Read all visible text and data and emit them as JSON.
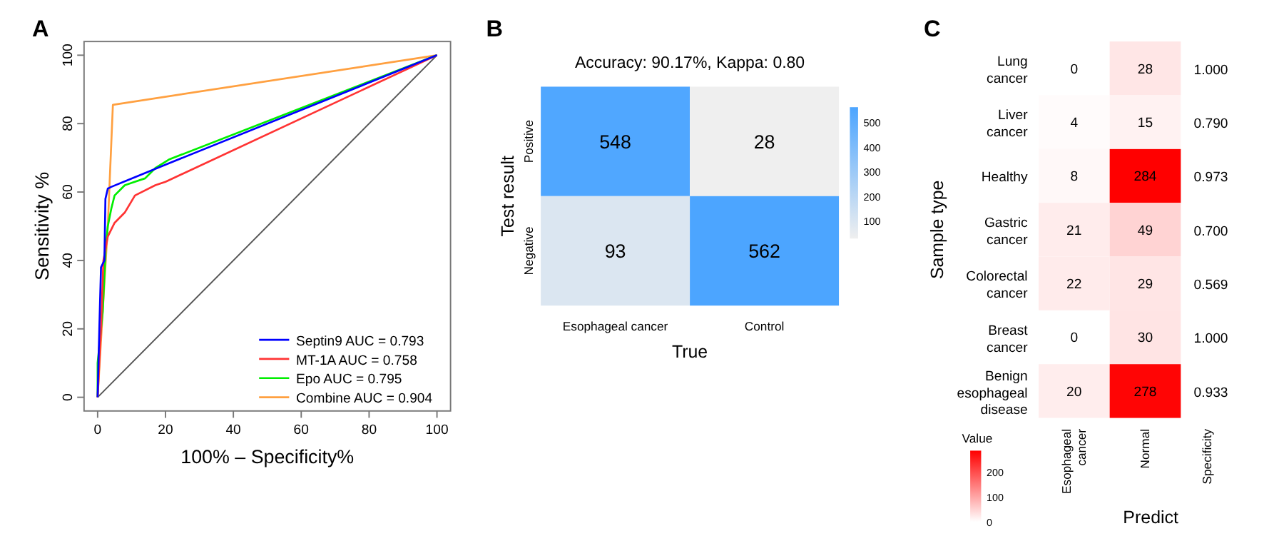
{
  "chart_data": [
    {
      "type": "line",
      "annotations": [
        "A"
      ],
      "xlabel": "100% – Specificity%",
      "ylabel": "Sensitivity %",
      "xlim": [
        -4,
        104
      ],
      "ylim": [
        -4,
        104
      ],
      "xticks": [
        0,
        20,
        40,
        60,
        80,
        100
      ],
      "yticks": [
        0,
        20,
        40,
        60,
        80,
        100
      ],
      "grid": false,
      "legend": "bottom right",
      "series": [
        {
          "name": "Septin9  AUC = 0.793",
          "color": "#0000ff",
          "x": [
            0,
            0.5,
            1,
            2,
            2.3,
            3,
            4,
            20,
            100
          ],
          "values": [
            0,
            20,
            38,
            40,
            58,
            61,
            61.5,
            68,
            100
          ]
        },
        {
          "name": "MT-1A  AUC = 0.758",
          "color": "#ff3333",
          "x": [
            0,
            1,
            1.7,
            3,
            5,
            8,
            11,
            17,
            20,
            100
          ],
          "values": [
            0,
            20,
            40,
            47,
            51,
            54,
            59,
            62,
            63,
            100
          ]
        },
        {
          "name": "Epo  AUC = 0.795",
          "color": "#00ee00",
          "x": [
            0,
            0,
            1.5,
            2.4,
            3,
            4,
            5,
            8,
            14,
            17,
            21,
            100
          ],
          "values": [
            0,
            10,
            25,
            44,
            50,
            55,
            59,
            62,
            64,
            67,
            69.5,
            100
          ]
        },
        {
          "name": "Combine  AUC = 0.904",
          "color": "#ffa040",
          "x": [
            0,
            3,
            4.5,
            100
          ],
          "values": [
            0,
            50,
            85.5,
            100
          ]
        },
        {
          "color": "#555555",
          "x": [
            0,
            100
          ],
          "values": [
            0,
            100
          ]
        }
      ]
    },
    {
      "type": "heatmap",
      "annotations": [
        "B"
      ],
      "title": "Accuracy: 90.17%, Kappa: 0.80",
      "xlabel": "True",
      "ylabel": "Test result",
      "categories": [
        "Esophageal cancer",
        "Control"
      ],
      "y_categories": [
        "Positive",
        "Negative"
      ],
      "cells": [
        [
          548,
          28
        ],
        [
          93,
          562
        ]
      ],
      "data_labels": true,
      "clim": [
        28,
        562
      ],
      "cticks": [
        100,
        200,
        300,
        400,
        500
      ],
      "colors": [
        "#efefef",
        "#4ca5ff"
      ]
    },
    {
      "type": "heatmap",
      "annotations": [
        "C"
      ],
      "xlabel": "Predict",
      "ylabel": "Sample type",
      "y2label": "Specificity",
      "clabel": "Value",
      "categories": [
        "Esophageal cancer",
        "Normal"
      ],
      "y_categories": [
        "Lung cancer",
        "Liver cancer",
        "Healthy",
        "Gastric cancer",
        "Colorectal cancer",
        "Breast cancer",
        "Benign esophageal disease"
      ],
      "y2_categories": [
        "1.000",
        "0.790",
        "0.973",
        "0.700",
        "0.569",
        "1.000",
        "0.933"
      ],
      "cells": [
        [
          0,
          28
        ],
        [
          4,
          15
        ],
        [
          8,
          284
        ],
        [
          21,
          49
        ],
        [
          22,
          29
        ],
        [
          0,
          30
        ],
        [
          20,
          278
        ]
      ],
      "data_labels": true,
      "clim": [
        0,
        284
      ],
      "cticks": [
        0,
        100,
        200
      ],
      "colors": [
        "#ffffff",
        "#ff0000"
      ]
    }
  ]
}
